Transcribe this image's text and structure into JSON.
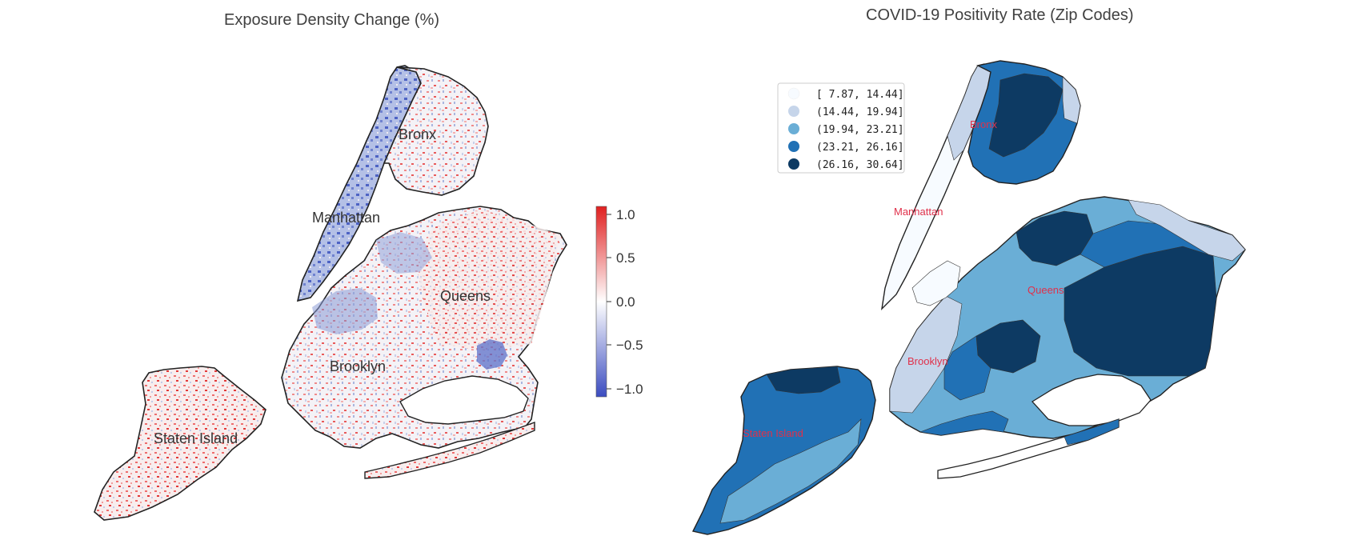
{
  "left_map": {
    "title": "Exposure Density Change (%)",
    "colormap": "bwr",
    "colorbar": {
      "range": [
        -1.1,
        1.1
      ],
      "ticks": [
        "1.0",
        "0.5",
        "0.0",
        "−0.5",
        "−1.0"
      ],
      "colors": {
        "low": "#3b4cc0",
        "mid": "#ffffff",
        "high": "#e02020"
      }
    },
    "labels": {
      "bronx": "Bronx",
      "manhattan": "Manhattan",
      "queens": "Queens",
      "brooklyn": "Brooklyn",
      "staten_island": "Staten Island"
    },
    "label_color": "#333333"
  },
  "right_map": {
    "title": "COVID-19 Positivity Rate (Zip Codes)",
    "legend": [
      {
        "label": "[ 7.87, 14.44]",
        "color": "#f7fbff"
      },
      {
        "label": "(14.44, 19.94]",
        "color": "#c6d5ea"
      },
      {
        "label": "(19.94, 23.21]",
        "color": "#6aaed6"
      },
      {
        "label": "(23.21, 26.16]",
        "color": "#2171b5"
      },
      {
        "label": "(26.16, 30.64]",
        "color": "#0d3a63"
      }
    ],
    "labels": {
      "bronx": "Bronx",
      "manhattan": "Manhattan",
      "queens": "Queens",
      "brooklyn": "Brooklyn",
      "staten_island": "Staten Island"
    },
    "label_color": "#e0304a"
  }
}
